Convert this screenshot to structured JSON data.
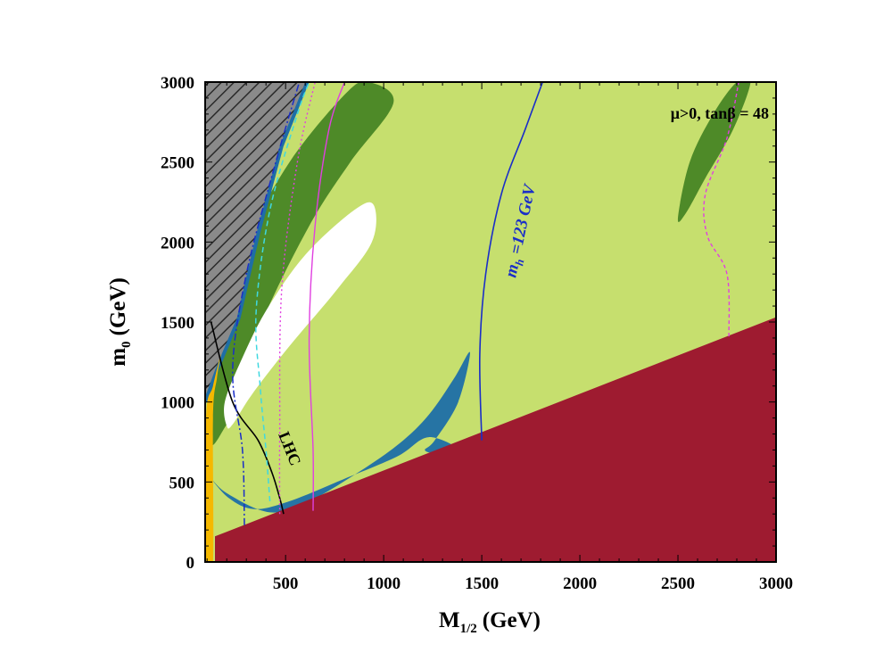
{
  "chart_data": {
    "type": "contour-regions",
    "xlabel": "M",
    "xlabel_sub": "1/2",
    "xlabel_unit": "(GeV)",
    "ylabel": "m",
    "ylabel_sub": "0",
    "ylabel_unit": "(GeV)",
    "xlim": [
      90,
      3000
    ],
    "ylim": [
      0,
      3000
    ],
    "xticks": [
      500,
      1000,
      1500,
      2000,
      2500,
      3000
    ],
    "yticks": [
      0,
      500,
      1000,
      1500,
      2000,
      2500,
      3000
    ],
    "annotations": {
      "params": "μ>0,   tanβ = 48",
      "lhc": "LHC",
      "mh_main": "m",
      "mh_sub": "h",
      "mh_rest": " =123 GeV"
    },
    "colors": {
      "background_allowed": "#c6df6e",
      "dark_green": "#4e8a28",
      "stau_lsp": "#9e1b30",
      "hatched_region": "#7a7a7a",
      "orange_strip": "#f5b800",
      "relic_band": "#1e6ea6",
      "mh_contour": "#1a2ec8",
      "magenta": "#e040e0",
      "cyan": "#40d8e0",
      "lhc_line": "#000000",
      "white_region": "#ffffff"
    },
    "regions": {
      "stau_lsp_boundary": [
        [
          140,
          160
        ],
        [
          3000,
          1530
        ]
      ],
      "hatched_boundary": [
        [
          90,
          1000
        ],
        [
          150,
          1200
        ],
        [
          260,
          1520
        ],
        [
          360,
          2050
        ],
        [
          480,
          2600
        ],
        [
          610,
          3000
        ]
      ],
      "dark_green_blob_main": [
        [
          120,
          730
        ],
        [
          100,
          900
        ],
        [
          170,
          1500
        ],
        [
          300,
          2000
        ],
        [
          520,
          2500
        ],
        [
          800,
          2920
        ],
        [
          920,
          3000
        ],
        [
          1050,
          2870
        ],
        [
          830,
          2500
        ],
        [
          620,
          2100
        ],
        [
          380,
          1500
        ],
        [
          250,
          1000
        ],
        [
          180,
          820
        ]
      ],
      "white_blob": [
        [
          200,
          850
        ],
        [
          190,
          1000
        ],
        [
          270,
          1250
        ],
        [
          400,
          1570
        ],
        [
          600,
          1920
        ],
        [
          850,
          2200
        ],
        [
          950,
          2230
        ],
        [
          940,
          2000
        ],
        [
          760,
          1700
        ],
        [
          520,
          1350
        ],
        [
          330,
          1050
        ],
        [
          230,
          860
        ]
      ],
      "dark_green_blob_right": [
        [
          2500,
          2150
        ],
        [
          2560,
          2500
        ],
        [
          2680,
          2800
        ],
        [
          2800,
          3000
        ],
        [
          2870,
          3000
        ],
        [
          2780,
          2700
        ],
        [
          2640,
          2400
        ],
        [
          2540,
          2180
        ]
      ],
      "relic_band_path": [
        [
          110,
          540
        ],
        [
          200,
          430
        ],
        [
          420,
          310
        ],
        [
          620,
          380
        ],
        [
          870,
          560
        ],
        [
          1080,
          740
        ],
        [
          1230,
          920
        ],
        [
          1360,
          1150
        ],
        [
          1440,
          1310
        ],
        [
          1380,
          1000
        ],
        [
          1260,
          760
        ],
        [
          1210,
          700
        ],
        [
          1270,
          680
        ],
        [
          1400,
          690
        ],
        [
          1230,
          780
        ],
        [
          1070,
          660
        ],
        [
          800,
          520
        ],
        [
          520,
          380
        ],
        [
          340,
          330
        ],
        [
          210,
          400
        ]
      ],
      "mh_123_contour": [
        [
          1500,
          760
        ],
        [
          1490,
          1300
        ],
        [
          1520,
          1800
        ],
        [
          1600,
          2300
        ],
        [
          1720,
          2700
        ],
        [
          1810,
          3000
        ]
      ],
      "lhc_contour": [
        [
          120,
          1500
        ],
        [
          230,
          1000
        ],
        [
          360,
          760
        ],
        [
          430,
          560
        ],
        [
          470,
          400
        ],
        [
          490,
          300
        ]
      ],
      "magenta_solid": [
        [
          640,
          320
        ],
        [
          640,
          700
        ],
        [
          620,
          1400
        ],
        [
          650,
          2100
        ],
        [
          720,
          2700
        ],
        [
          800,
          3000
        ]
      ],
      "magenta_dotted": [
        [
          470,
          300
        ],
        [
          470,
          800
        ],
        [
          480,
          1700
        ],
        [
          560,
          2500
        ],
        [
          650,
          3000
        ]
      ],
      "magenta_right": [
        [
          2760,
          1410
        ],
        [
          2750,
          1800
        ],
        [
          2650,
          2040
        ],
        [
          2640,
          2300
        ],
        [
          2750,
          2650
        ],
        [
          2810,
          3000
        ]
      ],
      "cyan_dashed": [
        [
          420,
          380
        ],
        [
          400,
          700
        ],
        [
          370,
          1100
        ],
        [
          350,
          1570
        ],
        [
          420,
          2200
        ],
        [
          560,
          2800
        ],
        [
          620,
          3000
        ]
      ],
      "blue_dashdot": [
        [
          290,
          230
        ],
        [
          280,
          700
        ],
        [
          230,
          1200
        ],
        [
          300,
          1800
        ],
        [
          450,
          2500
        ],
        [
          570,
          3000
        ]
      ]
    }
  }
}
